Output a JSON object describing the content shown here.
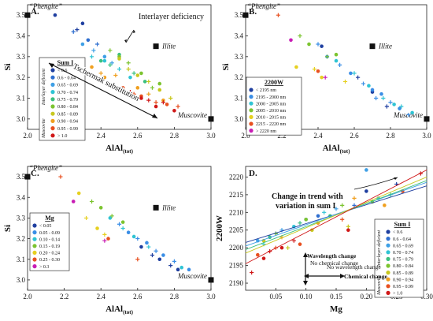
{
  "panels": [
    {
      "id": "A",
      "title": "A.",
      "xlabel": "Al",
      "xlabel_sub": "(tot)",
      "ylabel": "Si",
      "xlim": [
        2.0,
        3.0
      ],
      "ylim": [
        2.95,
        3.55
      ],
      "xticks": [
        "2.0",
        "2.2",
        "2.4",
        "2.6",
        "2.8",
        "3.0"
      ],
      "yticks": [
        "3.0",
        "3.1",
        "3.2",
        "3.3",
        "3.4",
        "3.5"
      ],
      "endmembers": [
        {
          "label": "“Phengite”",
          "x": 2.0,
          "y": 3.5
        },
        {
          "label": "Illite",
          "x": 2.7,
          "y": 3.35
        },
        {
          "label": "Muscovite",
          "x": 3.0,
          "y": 3.0
        }
      ],
      "annotations": [
        "Interlayer deficiency",
        "Tschermak substitution"
      ],
      "legend": {
        "title": "Sum I",
        "side_top": "Interlayer deficient",
        "side_bottom": "Muscovite",
        "items": [
          {
            "label": "< 0.6",
            "color": "#1f3fa0"
          },
          {
            "label": "0.6 - 0.64",
            "color": "#2f6fd0"
          },
          {
            "label": "0.65 - 0.69",
            "color": "#3fa0e6"
          },
          {
            "label": "0.70 - 0.74",
            "color": "#30c4d4"
          },
          {
            "label": "0.75 - 0.79",
            "color": "#3cc080"
          },
          {
            "label": "0.80 - 0.84",
            "color": "#7cc430"
          },
          {
            "label": "0.85 - 0.89",
            "color": "#c8c820"
          },
          {
            "label": "0.90 - 0.94",
            "color": "#f0a020"
          },
          {
            "label": "0.95 - 0.99",
            "color": "#e85020"
          },
          {
            "label": "> 1.0",
            "color": "#d01818"
          }
        ]
      }
    },
    {
      "id": "B",
      "title": "B.",
      "xlabel": "Al",
      "xlabel_sub": "(tot)",
      "ylabel": "Si",
      "xlim": [
        2.0,
        3.0
      ],
      "ylim": [
        2.95,
        3.55
      ],
      "xticks": [
        "2.0",
        "2.2",
        "2.4",
        "2.6",
        "2.8",
        "3.0"
      ],
      "yticks": [
        "3.0",
        "3.1",
        "3.2",
        "3.3",
        "3.4",
        "3.5"
      ],
      "endmembers": [
        {
          "label": "“Phengite”",
          "x": 2.0,
          "y": 3.5
        },
        {
          "label": "Illite",
          "x": 2.7,
          "y": 3.35
        },
        {
          "label": "Muscovite",
          "x": 3.0,
          "y": 3.0
        }
      ],
      "legend": {
        "title": "2200W",
        "items": [
          {
            "label": "< 2195 nm",
            "color": "#1f3fa0"
          },
          {
            "label": "2195 - 2000 nm",
            "color": "#3a8ee6"
          },
          {
            "label": "2000 - 2005 nm",
            "color": "#30c4d4"
          },
          {
            "label": "2005 - 2010 nm",
            "color": "#7cc430"
          },
          {
            "label": "2010 - 2015 nm",
            "color": "#e6d020"
          },
          {
            "label": "2215 - 2220 nm",
            "color": "#e85020"
          },
          {
            "label": "> 2220 nm",
            "color": "#c81cb4"
          }
        ]
      }
    },
    {
      "id": "C",
      "title": "C.",
      "xlabel": "Al",
      "xlabel_sub": "(tot)",
      "ylabel": "Si",
      "xlim": [
        2.0,
        3.0
      ],
      "ylim": [
        2.95,
        3.55
      ],
      "xticks": [
        "2.0",
        "2.2",
        "2.4",
        "2.6",
        "2.8",
        "3.0"
      ],
      "yticks": [
        "3.0",
        "3.1",
        "3.2",
        "3.3",
        "3.4",
        "3.5"
      ],
      "endmembers": [
        {
          "label": "“Phengite”",
          "x": 2.0,
          "y": 3.5
        },
        {
          "label": "Illite",
          "x": 2.7,
          "y": 3.35
        },
        {
          "label": "Muscovite",
          "x": 3.0,
          "y": 3.0
        }
      ],
      "legend": {
        "title": "Mg",
        "items": [
          {
            "label": "< 0.05",
            "color": "#1f3fa0"
          },
          {
            "label": "0.05 - 0.09",
            "color": "#3a8ee6"
          },
          {
            "label": "0.10 - 0.14",
            "color": "#30c4d4"
          },
          {
            "label": "0.15 - 0.19",
            "color": "#7cc430"
          },
          {
            "label": "0.20 - 0.24",
            "color": "#e6d020"
          },
          {
            "label": "0.25 - 0.30",
            "color": "#e85020"
          },
          {
            "label": "> 0.3",
            "color": "#c81cb4"
          }
        ]
      }
    },
    {
      "id": "D",
      "title": "D.",
      "xlabel": "Mg",
      "ylabel": "2200W",
      "xlim": [
        0.0,
        0.3
      ],
      "ylim": [
        2188,
        2223
      ],
      "xticks": [
        "0.05",
        "0.10",
        "0.15",
        "0.20",
        "0.25",
        "0.30"
      ],
      "yticks": [
        "2190",
        "2195",
        "2200",
        "2205",
        "2210",
        "2215",
        "2220"
      ],
      "annotations": [
        "Change in trend with",
        "variation in sum I",
        "Wavelength change",
        "No chemical change",
        "No wavelength change",
        "Chemical change"
      ],
      "legend": {
        "title": "Sum I",
        "side_top": "Interlayer deficient",
        "side_bottom": "Muscovite",
        "items": [
          {
            "label": "< 0.6",
            "color": "#1f3fa0"
          },
          {
            "label": "0.6 - 0.64",
            "color": "#2f6fd0"
          },
          {
            "label": "0.65 - 0.69",
            "color": "#3fa0e6"
          },
          {
            "label": "0.70 - 0.74",
            "color": "#30c4d4"
          },
          {
            "label": "0.75 - 0.79",
            "color": "#3cc080"
          },
          {
            "label": "0.80 - 0.84",
            "color": "#7cc430"
          },
          {
            "label": "0.85 - 0.89",
            "color": "#c8c820"
          },
          {
            "label": "0.90 - 0.94",
            "color": "#f0a020"
          },
          {
            "label": "0.95 - 0.99",
            "color": "#e85020"
          },
          {
            "label": "> 1.0",
            "color": "#d01818"
          }
        ]
      },
      "trend_lines": [
        {
          "color": "#1f3fa0",
          "x": [
            0.0,
            0.3
          ],
          "y": [
            2201.5,
            2217.5
          ]
        },
        {
          "color": "#3fa0e6",
          "x": [
            0.0,
            0.3
          ],
          "y": [
            2200.5,
            2218.5
          ]
        },
        {
          "color": "#3cc080",
          "x": [
            0.0,
            0.3
          ],
          "y": [
            2199.5,
            2219.0
          ]
        },
        {
          "color": "#c8c820",
          "x": [
            0.0,
            0.3
          ],
          "y": [
            2198.5,
            2220.0
          ]
        },
        {
          "color": "#d01818",
          "x": [
            0.0,
            0.3
          ],
          "y": [
            2195.5,
            2222.0
          ]
        }
      ]
    }
  ],
  "chart_data": [
    {
      "type": "scatter",
      "title": "A.",
      "xlabel": "Al(tot)",
      "ylabel": "Si",
      "xlim": [
        2.0,
        3.0
      ],
      "ylim": [
        2.95,
        3.55
      ],
      "color_by": "Sum I",
      "series": [
        {
          "name": "< 0.6",
          "x": [
            2.15,
            2.27,
            2.3
          ],
          "y": [
            3.5,
            3.43,
            3.46
          ]
        },
        {
          "name": "0.6 - 0.64",
          "x": [
            2.25,
            2.33,
            2.38
          ],
          "y": [
            3.42,
            3.38,
            3.36
          ]
        },
        {
          "name": "0.65 - 0.69",
          "x": [
            2.3,
            2.36,
            2.42,
            2.46
          ],
          "y": [
            3.36,
            3.33,
            3.3,
            3.27
          ]
        },
        {
          "name": "0.70 - 0.74",
          "x": [
            2.35,
            2.42,
            2.5,
            2.56
          ],
          "y": [
            3.3,
            3.28,
            3.24,
            3.2
          ]
        },
        {
          "name": "0.75 - 0.79",
          "x": [
            2.4,
            2.45,
            2.5,
            2.58,
            2.64
          ],
          "y": [
            3.28,
            3.26,
            3.31,
            3.22,
            3.18
          ]
        },
        {
          "name": "0.80 - 0.84",
          "x": [
            2.45,
            2.5,
            2.55,
            2.62,
            2.68,
            2.72
          ],
          "y": [
            3.33,
            3.3,
            3.27,
            3.22,
            3.15,
            3.17
          ]
        },
        {
          "name": "0.85 - 0.89",
          "x": [
            2.5,
            2.55,
            2.6,
            2.66,
            2.72,
            2.78
          ],
          "y": [
            3.29,
            3.24,
            3.21,
            3.18,
            3.14,
            3.1
          ]
        },
        {
          "name": "0.90 - 0.94",
          "x": [
            2.3,
            2.35,
            2.4,
            2.42,
            2.48,
            2.6,
            2.66,
            2.74
          ],
          "y": [
            3.22,
            3.25,
            3.22,
            3.2,
            3.21,
            3.15,
            3.12,
            3.09
          ]
        },
        {
          "name": "0.95 - 0.99",
          "x": [
            2.38,
            2.44,
            2.52,
            2.58,
            2.62,
            2.7,
            2.76,
            2.82
          ],
          "y": [
            3.19,
            3.17,
            3.15,
            3.12,
            3.11,
            3.08,
            3.07,
            3.06
          ]
        },
        {
          "name": "> 1.0",
          "x": [
            2.56,
            2.62,
            2.66,
            2.7,
            2.74,
            2.8
          ],
          "y": [
            3.13,
            3.1,
            3.09,
            3.06,
            3.08,
            3.04
          ]
        }
      ]
    },
    {
      "type": "scatter",
      "title": "B.",
      "xlabel": "Al(tot)",
      "ylabel": "Si",
      "xlim": [
        2.0,
        3.0
      ],
      "ylim": [
        2.95,
        3.55
      ],
      "color_by": "2200W",
      "series": [
        {
          "name": "< 2195 nm",
          "x": [
            2.42,
            2.62,
            2.7,
            2.78
          ],
          "y": [
            3.35,
            3.2,
            3.13,
            3.06
          ]
        },
        {
          "name": "2195 - 2000 nm",
          "x": [
            2.4,
            2.45,
            2.52,
            2.58,
            2.65,
            2.7,
            2.72,
            2.75,
            2.8,
            2.85,
            2.9
          ],
          "y": [
            3.36,
            3.3,
            3.26,
            3.22,
            3.17,
            3.14,
            3.1,
            3.12,
            3.08,
            3.05,
            3.02
          ]
        },
        {
          "name": "2000 - 2005 nm",
          "x": [
            2.5,
            2.6,
            2.68,
            2.76,
            2.82,
            2.86,
            2.92
          ],
          "y": [
            3.28,
            3.22,
            3.16,
            3.1,
            3.07,
            3.06,
            3.03
          ]
        },
        {
          "name": "2005 - 2010 nm",
          "x": [
            2.3,
            2.35,
            2.45,
            2.5
          ],
          "y": [
            3.4,
            3.36,
            3.3,
            3.31
          ]
        },
        {
          "name": "2010 - 2015 nm",
          "x": [
            2.28,
            2.38,
            2.42,
            2.55
          ],
          "y": [
            3.25,
            3.24,
            3.2,
            3.18
          ]
        },
        {
          "name": "2215 - 2220 nm",
          "x": [
            2.18,
            2.4
          ],
          "y": [
            3.5,
            3.23
          ]
        },
        {
          "name": "> 2220 nm",
          "x": [
            2.25,
            2.44
          ],
          "y": [
            3.38,
            3.2
          ]
        }
      ]
    },
    {
      "type": "scatter",
      "title": "C.",
      "xlabel": "Al(tot)",
      "ylabel": "Si",
      "xlim": [
        2.0,
        3.0
      ],
      "ylim": [
        2.95,
        3.55
      ],
      "color_by": "Mg",
      "series": [
        {
          "name": "< 0.05",
          "x": [
            2.62,
            2.68,
            2.72,
            2.78,
            2.82
          ],
          "y": [
            3.16,
            3.12,
            3.1,
            3.07,
            3.05
          ]
        },
        {
          "name": "0.05 - 0.09",
          "x": [
            2.5,
            2.55,
            2.6,
            2.65,
            2.7,
            2.74,
            2.8,
            2.88
          ],
          "y": [
            3.27,
            3.23,
            3.2,
            3.18,
            3.14,
            3.12,
            3.09,
            3.05
          ]
        },
        {
          "name": "0.10 - 0.14",
          "x": [
            2.45,
            2.52,
            2.58,
            2.66,
            2.84
          ],
          "y": [
            3.3,
            3.25,
            3.21,
            3.16,
            3.06
          ]
        },
        {
          "name": "0.15 - 0.19",
          "x": [
            2.35,
            2.4,
            2.46,
            2.52
          ],
          "y": [
            3.38,
            3.35,
            3.31,
            3.28
          ]
        },
        {
          "name": "0.20 - 0.24",
          "x": [
            2.28,
            2.32,
            2.38,
            2.42
          ],
          "y": [
            3.42,
            3.3,
            3.25,
            3.22
          ]
        },
        {
          "name": "0.25 - 0.30",
          "x": [
            2.18,
            2.44,
            2.6
          ],
          "y": [
            3.5,
            3.2,
            3.1
          ]
        },
        {
          "name": "> 0.3",
          "x": [
            2.25,
            2.42
          ],
          "y": [
            3.38,
            3.19
          ]
        }
      ]
    },
    {
      "type": "scatter",
      "title": "D.",
      "xlabel": "Mg",
      "ylabel": "2200W",
      "xlim": [
        0.0,
        0.3
      ],
      "ylim": [
        2188,
        2223
      ],
      "color_by": "Sum I",
      "series": [
        {
          "name": "< 0.6",
          "x": [
            0.2,
            0.25
          ],
          "y": [
            2216,
            2218
          ]
        },
        {
          "name": "0.6 - 0.64",
          "x": [
            0.05,
            0.12,
            0.18
          ],
          "y": [
            2204,
            2209,
            2212
          ]
        },
        {
          "name": "0.65 - 0.69",
          "x": [
            0.02,
            0.06,
            0.1,
            0.15,
            0.2
          ],
          "y": [
            2202,
            2205,
            2208,
            2211,
            2222
          ]
        },
        {
          "name": "0.70 - 0.74",
          "x": [
            0.03,
            0.08,
            0.13,
            0.22
          ],
          "y": [
            2201,
            2206,
            2210,
            2214
          ]
        },
        {
          "name": "0.75 - 0.79",
          "x": [
            0.04,
            0.09,
            0.14,
            0.24
          ],
          "y": [
            2203,
            2207,
            2209,
            2215
          ]
        },
        {
          "name": "0.80 - 0.84",
          "x": [
            0.05,
            0.1,
            0.16,
            0.21
          ],
          "y": [
            2204,
            2208,
            2212,
            2213
          ]
        },
        {
          "name": "0.85 - 0.89",
          "x": [
            0.03,
            0.07,
            0.11,
            0.17
          ],
          "y": [
            2202,
            2200,
            2205,
            2206
          ]
        },
        {
          "name": "0.90 - 0.94",
          "x": [
            0.06,
            0.12,
            0.18,
            0.23
          ],
          "y": [
            2203,
            2207,
            2214,
            2212
          ]
        },
        {
          "name": "0.95 - 0.99",
          "x": [
            0.02,
            0.05,
            0.09,
            0.16,
            0.26
          ],
          "y": [
            2198,
            2200,
            2201,
            2208,
            2216
          ]
        },
        {
          "name": "> 1.0",
          "x": [
            0.01,
            0.03,
            0.04,
            0.06,
            0.08,
            0.17,
            0.29
          ],
          "y": [
            2193,
            2197,
            2199,
            2200,
            2202,
            2205,
            2221
          ]
        }
      ]
    }
  ]
}
